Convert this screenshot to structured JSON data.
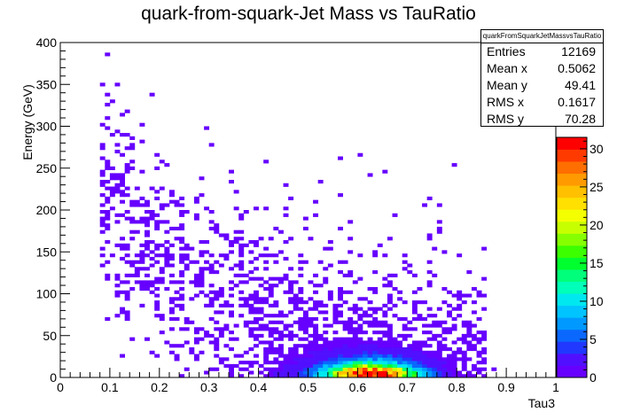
{
  "chart_data": {
    "type": "heatmap",
    "title": "quark-from-squark-Jet Mass vs TauRatio",
    "xlabel": "Tau3",
    "ylabel": "Energy (GeV)",
    "xlim": [
      0,
      1
    ],
    "ylim": [
      0,
      400
    ],
    "x_ticks": [
      "0",
      "0.1",
      "0.2",
      "0.3",
      "0.4",
      "0.5",
      "0.6",
      "0.7",
      "0.8",
      "0.9",
      "1"
    ],
    "y_ticks": [
      "0",
      "50",
      "100",
      "150",
      "200",
      "250",
      "300",
      "350",
      "400"
    ],
    "z_ticks": [
      "0",
      "5",
      "10",
      "15",
      "20",
      "25",
      "30"
    ],
    "zlim": [
      0,
      31.5
    ],
    "bins": {
      "nx": 100,
      "ny": 100
    },
    "grid": false,
    "palette": "rainbow (violet to red)",
    "stats": {
      "name": "quarkFromSquarkJetMassvsTauRatio",
      "rows": [
        {
          "label": "Entries",
          "value": "12169"
        },
        {
          "label": "Mean x",
          "value": "0.5062"
        },
        {
          "label": "Mean y",
          "value": "49.41"
        },
        {
          "label": "RMS x",
          "value": "0.1617"
        },
        {
          "label": "RMS y",
          "value": "70.28"
        }
      ]
    },
    "distribution": {
      "peak_x": 0.63,
      "peak_y": 8,
      "peak_count": 31,
      "description_regions": [
        {
          "x_range": [
            0.45,
            0.85
          ],
          "y_range": [
            0,
            30
          ],
          "max_count": 31
        },
        {
          "x_range": [
            0.15,
            0.75
          ],
          "y_range": [
            30,
            150
          ],
          "max_count": 4
        },
        {
          "x_range": [
            0.1,
            0.45
          ],
          "y_range": [
            150,
            400
          ],
          "max_count": 1
        }
      ]
    }
  }
}
